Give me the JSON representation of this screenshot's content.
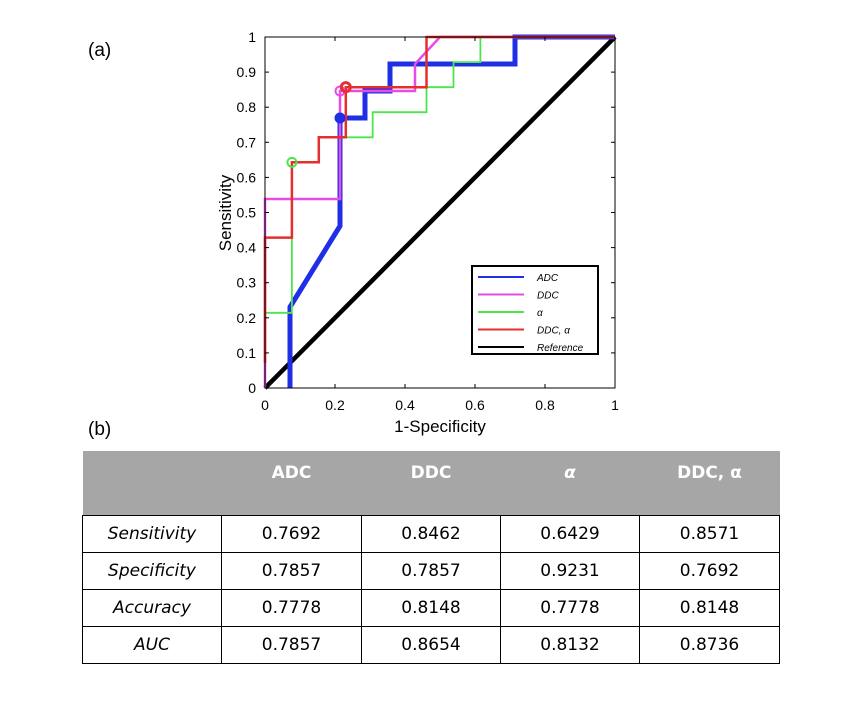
{
  "panel_a_label": "(a)",
  "panel_b_label": "(b)",
  "chart_data": {
    "type": "line",
    "title": "",
    "xlabel": "1-Specificity",
    "ylabel": "Sensitivity",
    "xlim": [
      0,
      1
    ],
    "ylim": [
      0,
      1
    ],
    "xticks": [
      "0",
      "0.2",
      "0.4",
      "0.6",
      "0.8",
      "1"
    ],
    "yticks": [
      "0",
      "0.1",
      "0.2",
      "0.3",
      "0.4",
      "0.5",
      "0.6",
      "0.7",
      "0.8",
      "0.9",
      "1"
    ],
    "legend_position": "bottom-right",
    "series": [
      {
        "name": "ADC",
        "color": "#1f2fe6",
        "x": [
          0.0714,
          0.0714,
          0.2143,
          0.2143,
          0.2857,
          0.2857,
          0.3571,
          0.3571,
          0.4286,
          0.5714,
          0.7143,
          0.7143,
          1
        ],
        "y": [
          0,
          0.2308,
          0.4615,
          0.7692,
          0.7692,
          0.8462,
          0.8462,
          0.9231,
          0.9231,
          0.9231,
          0.9231,
          1,
          1
        ]
      },
      {
        "name": "DDC",
        "color": "#e64ce6",
        "x": [
          0,
          0,
          0.2143,
          0.2143,
          0.4286,
          0.4286,
          0.5,
          1
        ],
        "y": [
          0,
          0.5385,
          0.5385,
          0.8462,
          0.8462,
          0.9231,
          1,
          1
        ]
      },
      {
        "name": "α",
        "color": "#4ce64c",
        "x": [
          0,
          0,
          0.0769,
          0.0769,
          0.1538,
          0.1538,
          0.3077,
          0.3077,
          0.4615,
          0.4615,
          0.5385,
          0.5385,
          0.6154,
          0.6154,
          1
        ],
        "y": [
          0,
          0.2143,
          0.2143,
          0.6429,
          0.6429,
          0.7143,
          0.7143,
          0.7857,
          0.7857,
          0.8571,
          0.8571,
          0.9286,
          0.9286,
          1,
          1
        ]
      },
      {
        "name": "DDC, α",
        "color": "#e62e2e",
        "x": [
          0,
          0,
          0.0769,
          0.0769,
          0.1538,
          0.1538,
          0.2308,
          0.2308,
          0.4615,
          0.4615,
          1
        ],
        "y": [
          0.0714,
          0.4286,
          0.4286,
          0.6429,
          0.6429,
          0.7143,
          0.7143,
          0.8571,
          0.8571,
          1,
          1
        ]
      },
      {
        "name": "Reference",
        "color": "#000000",
        "x": [
          0,
          1
        ],
        "y": [
          0,
          1
        ]
      }
    ],
    "operating_points": [
      {
        "series": "ADC",
        "x": 0.2143,
        "y": 0.7692
      },
      {
        "series": "DDC",
        "x": 0.2143,
        "y": 0.8462
      },
      {
        "series": "α",
        "x": 0.0769,
        "y": 0.6429
      },
      {
        "series": "DDC, α",
        "x": 0.2308,
        "y": 0.8571
      }
    ]
  },
  "table": {
    "headers": [
      "",
      "ADC",
      "DDC",
      "α",
      "DDC, α"
    ],
    "rows": [
      {
        "label": "Sensitivity",
        "values": [
          "0.7692",
          "0.8462",
          "0.6429",
          "0.8571"
        ]
      },
      {
        "label": "Specificity",
        "values": [
          "0.7857",
          "0.7857",
          "0.9231",
          "0.7692"
        ]
      },
      {
        "label": "Accuracy",
        "values": [
          "0.7778",
          "0.8148",
          "0.7778",
          "0.8148"
        ]
      },
      {
        "label": "AUC",
        "values": [
          "0.7857",
          "0.8654",
          "0.8132",
          "0.8736"
        ]
      }
    ]
  }
}
